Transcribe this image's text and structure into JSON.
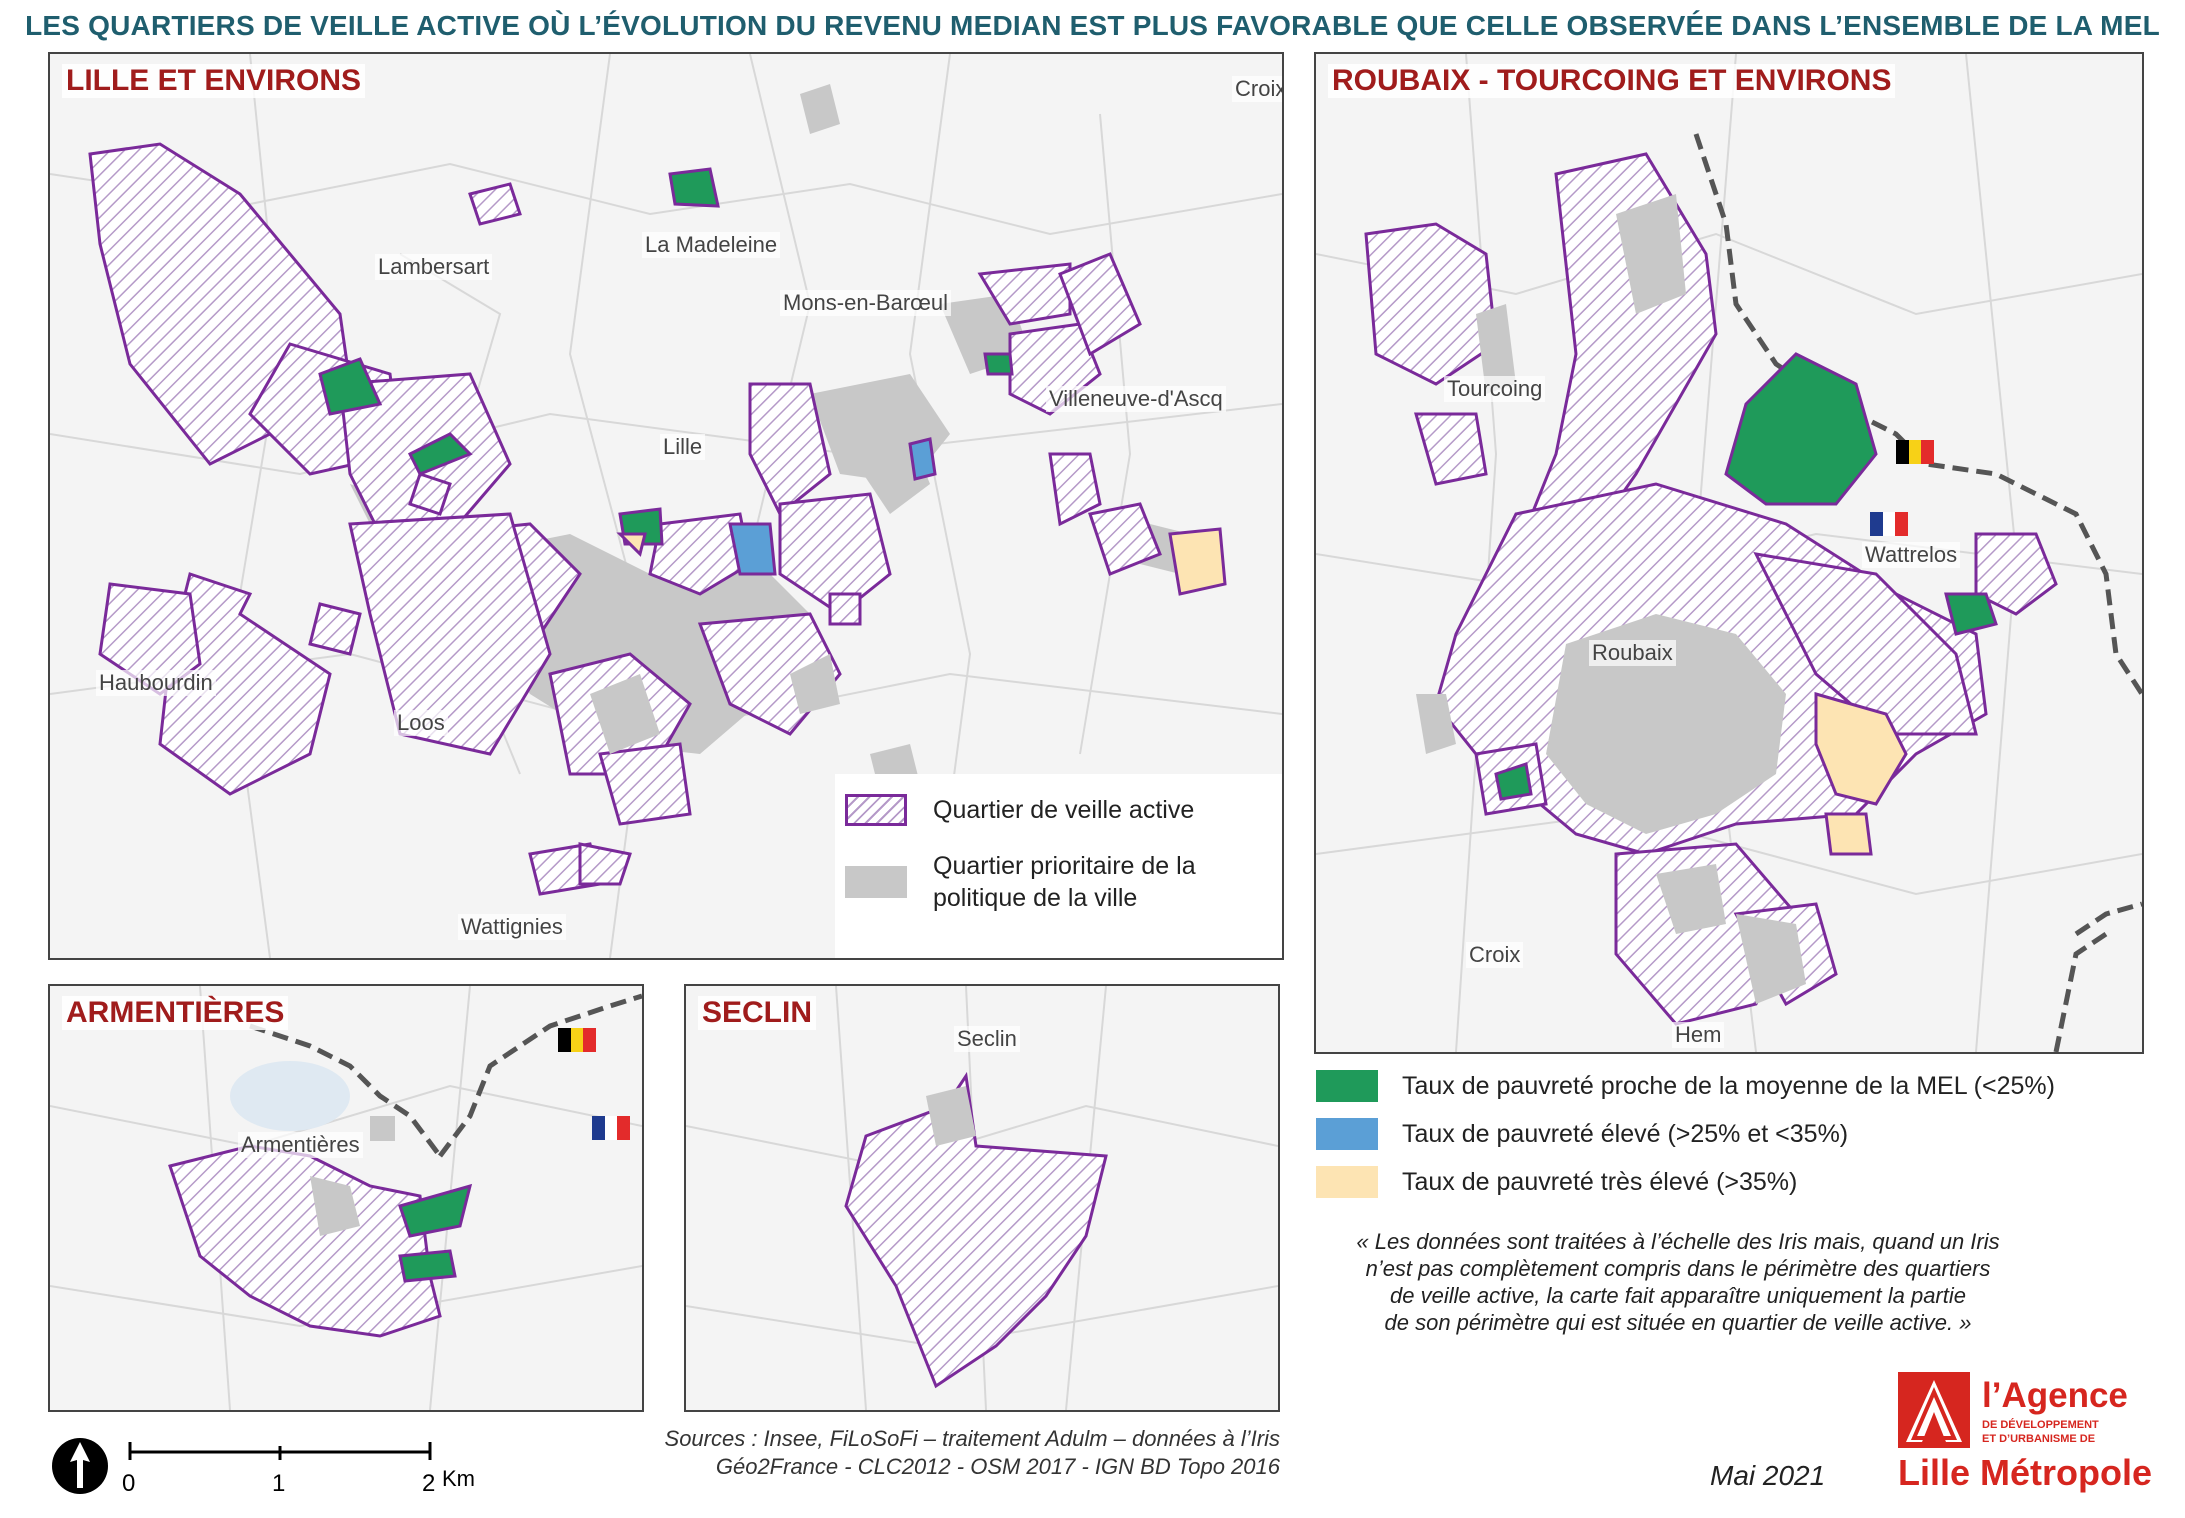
{
  "title": "LES QUARTIERS DE VEILLE ACTIVE OÙ L’ÉVOLUTION DU REVENU MEDIAN EST PLUS FAVORABLE QUE CELLE OBSERVÉE DANS L’ENSEMBLE DE LA MEL",
  "panels": {
    "lille": {
      "title": "LILLE ET ENVIRONS",
      "places": [
        "Lambersart",
        "La Madeleine",
        "Mons-en-Barœul",
        "Villeneuve-d'Ascq",
        "Lille",
        "Haubourdin",
        "Loos",
        "Wattignies",
        "Croix"
      ]
    },
    "roubaix": {
      "title": "ROUBAIX - TOURCOING ET ENVIRONS",
      "places": [
        "Tourcoing",
        "Wattrelos",
        "Roubaix",
        "Croix",
        "Hem"
      ]
    },
    "armentieres": {
      "title": "ARMENTIÈRES",
      "places": [
        "Armentières"
      ]
    },
    "seclin": {
      "title": "SECLIN",
      "places": [
        "Seclin"
      ]
    }
  },
  "legend_map": {
    "veille": "Quartier de veille active",
    "prioritaire_line1": "Quartier prioritaire de la",
    "prioritaire_line2": "politique de la ville"
  },
  "legend_poverty": {
    "green": "Taux de pauvreté proche de la moyenne de la MEL (<25%)",
    "blue": "Taux de pauvreté élevé (>25% et <35%)",
    "yellow": "Taux de pauvreté très élevé (>35%)"
  },
  "note": {
    "line1": "« Les données sont traitées à l’échelle des Iris mais, quand un Iris",
    "line2": "n’est pas complètement compris dans le périmètre des quartiers",
    "line3": "de veille active, la carte fait apparaître uniquement la partie",
    "line4": "de son périmètre qui est située en quartier de veille active. »"
  },
  "sources": {
    "line1": "Sources : Insee, FiLoSoFi – traitement Adulm – données à l’Iris",
    "line2": "Géo2France - CLC2012 -  OSM 2017 - IGN BD Topo 2016"
  },
  "scale": {
    "t0": "0",
    "t1": "1",
    "t2": "2",
    "unit": "Km"
  },
  "date": "Mai 2021",
  "logo": {
    "line1": "l’Agence",
    "line2a": "DE DÉVELOPPEMENT",
    "line2b": "ET D’URBANISME DE",
    "line3": "Lille Métropole"
  },
  "colors": {
    "purple": "#7a2a9a",
    "hatch": "#b59ac8",
    "grey": "#c8c8c8",
    "green": "#1f9a5a",
    "blue": "#5b9fd6",
    "yellow": "#fde4b3",
    "title": "#1f5e6e",
    "panel_title": "#a01c1c"
  }
}
